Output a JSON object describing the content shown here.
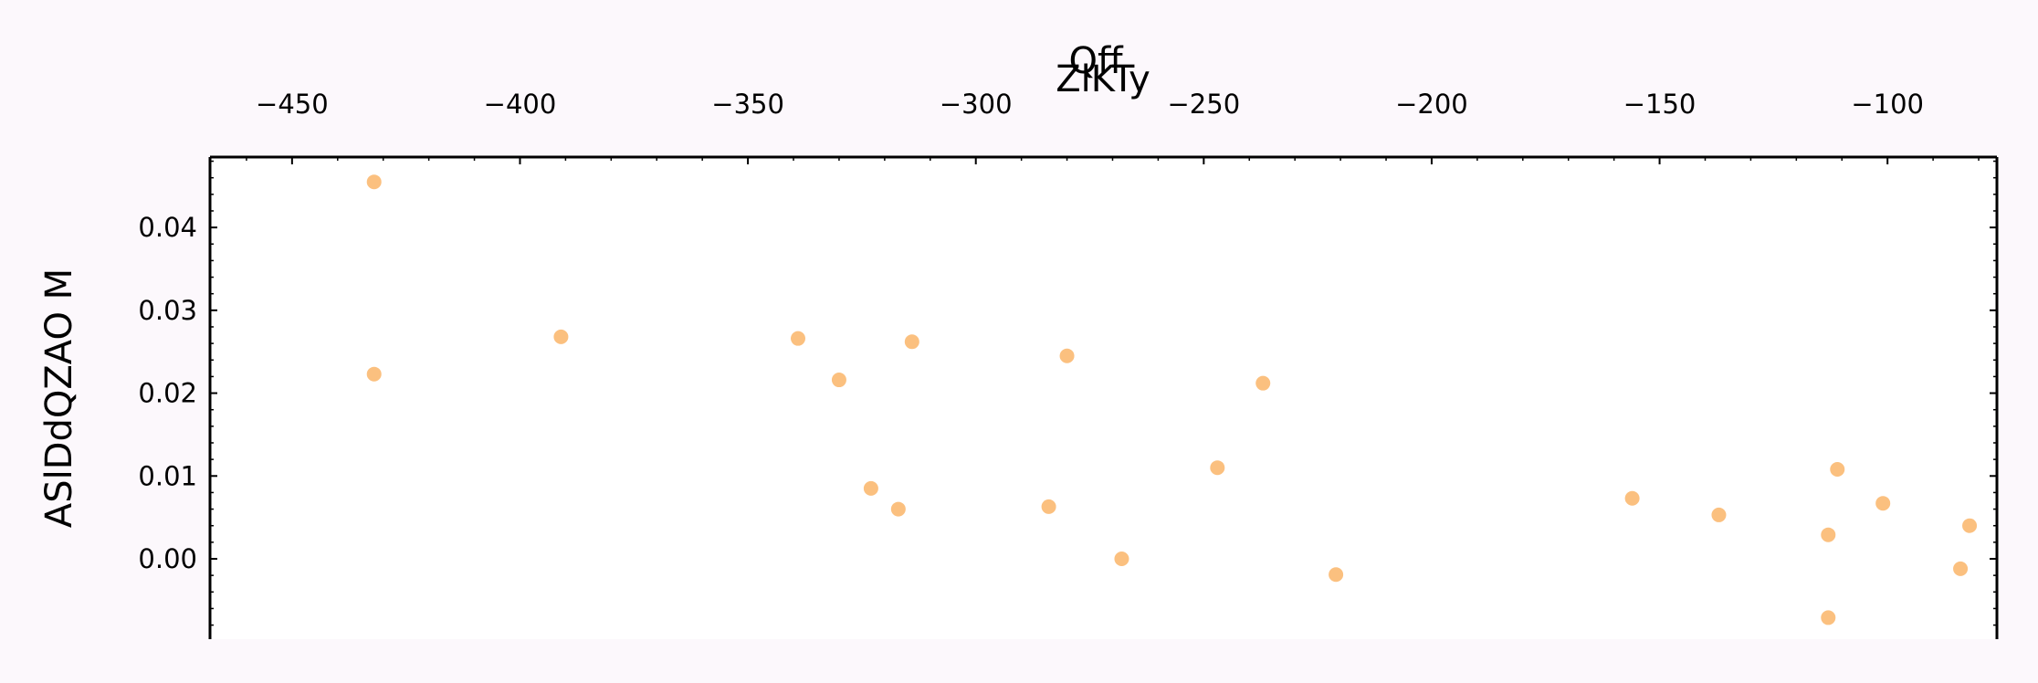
{
  "chart_data": {
    "type": "scatter",
    "title": "Qff",
    "xlabel": "ZlKTy",
    "ylabel": "ASlDdQZAO M",
    "xlim": [
      -468,
      -76
    ],
    "ylim": [
      -0.0097,
      0.0485
    ],
    "xticks": [
      -450,
      -400,
      -350,
      -300,
      -250,
      -200,
      -150,
      -100
    ],
    "xtick_labels": [
      "−450",
      "−400",
      "−350",
      "−300",
      "−250",
      "−200",
      "−150",
      "−100"
    ],
    "yticks": [
      0.0,
      0.01,
      0.02,
      0.03,
      0.04
    ],
    "ytick_labels": [
      "0.00",
      "0.01",
      "0.02",
      "0.03",
      "0.04"
    ],
    "x_axis_position": "top",
    "grid": false,
    "legend": "none",
    "marker_color": "#fbc07f",
    "series": [
      {
        "x": [
          -432,
          -432,
          -391,
          -339,
          -330,
          -323,
          -317,
          -314,
          -284,
          -280,
          -268,
          -247,
          -237,
          -221,
          -156,
          -137,
          -113,
          -113,
          -111,
          -101,
          -84,
          -82
        ],
        "y": [
          0.0455,
          0.0223,
          0.0268,
          0.0266,
          0.0216,
          0.0085,
          0.006,
          0.0262,
          0.0063,
          0.0245,
          0.0,
          0.011,
          0.0212,
          -0.0019,
          0.0073,
          0.0053,
          -0.0071,
          0.0029,
          0.0108,
          0.0067,
          -0.0012,
          0.004
        ]
      }
    ]
  }
}
